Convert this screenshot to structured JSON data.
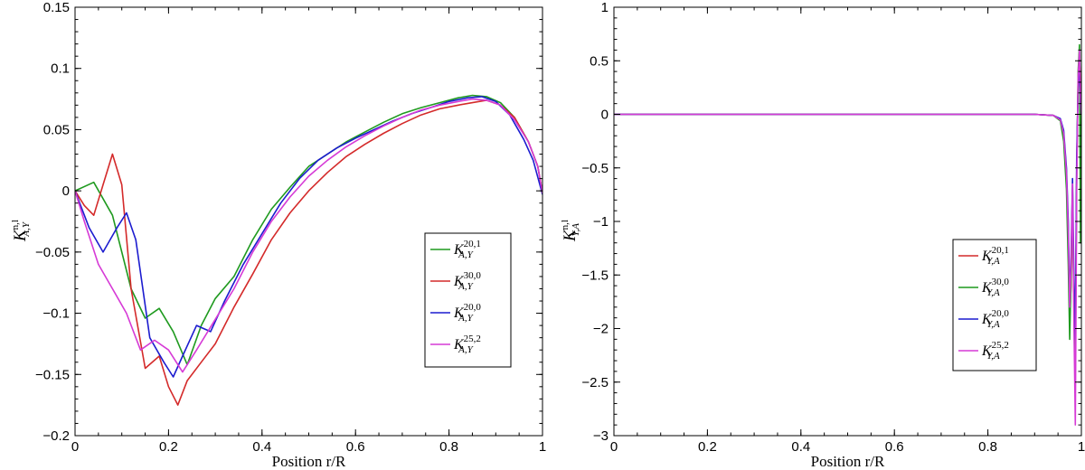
{
  "chart_data": [
    {
      "type": "line",
      "xlabel": "Position r/R",
      "ylabel": {
        "base": "K",
        "sup": "n,l",
        "sub": "A,Y"
      },
      "xlim": [
        0,
        1
      ],
      "ylim": [
        -0.2,
        0.15
      ],
      "xticks": [
        0,
        0.2,
        0.4,
        0.6,
        0.8,
        1
      ],
      "xtick_labels": [
        "0",
        "0.2",
        "0.4",
        "0.6",
        "0.8",
        "1"
      ],
      "yticks": [
        -0.2,
        -0.15,
        -0.1,
        -0.05,
        0,
        0.05,
        0.1,
        0.15
      ],
      "ytick_labels": [
        "−0.2",
        "−0.15",
        "−0.1",
        "−0.05",
        "0",
        "0.05",
        "0.1",
        "0.15"
      ],
      "grid": false,
      "legend_position": "center-right",
      "series": [
        {
          "name": "K_{A,Y}^{20,1}",
          "label": {
            "base": "K",
            "sup": "20,1",
            "sub": "A,Y"
          },
          "color": "#1f9a1f",
          "x": [
            0,
            0.04,
            0.08,
            0.12,
            0.15,
            0.18,
            0.21,
            0.24,
            0.27,
            0.3,
            0.34,
            0.38,
            0.42,
            0.46,
            0.5,
            0.54,
            0.58,
            0.62,
            0.66,
            0.7,
            0.74,
            0.78,
            0.82,
            0.85,
            0.88,
            0.91,
            0.94,
            0.97,
            0.99,
            1.0
          ],
          "y": [
            0,
            0.007,
            -0.02,
            -0.08,
            -0.104,
            -0.096,
            -0.115,
            -0.142,
            -0.11,
            -0.088,
            -0.07,
            -0.04,
            -0.015,
            0.003,
            0.02,
            0.03,
            0.04,
            0.048,
            0.056,
            0.063,
            0.068,
            0.072,
            0.076,
            0.078,
            0.077,
            0.072,
            0.06,
            0.04,
            0.02,
            -0.002
          ]
        },
        {
          "name": "K_{A,Y}^{30,0}",
          "label": {
            "base": "K",
            "sup": "30,0",
            "sub": "A,Y"
          },
          "color": "#d42a2a",
          "x": [
            0,
            0.02,
            0.04,
            0.06,
            0.08,
            0.1,
            0.12,
            0.15,
            0.18,
            0.2,
            0.22,
            0.24,
            0.27,
            0.3,
            0.34,
            0.38,
            0.42,
            0.46,
            0.5,
            0.54,
            0.58,
            0.62,
            0.66,
            0.7,
            0.74,
            0.78,
            0.82,
            0.85,
            0.88,
            0.91,
            0.94,
            0.97,
            0.99,
            1.0
          ],
          "y": [
            0,
            -0.012,
            -0.02,
            0.005,
            0.03,
            0.005,
            -0.08,
            -0.145,
            -0.135,
            -0.16,
            -0.175,
            -0.155,
            -0.14,
            -0.125,
            -0.095,
            -0.068,
            -0.04,
            -0.018,
            0.0,
            0.015,
            0.028,
            0.038,
            0.047,
            0.055,
            0.062,
            0.067,
            0.07,
            0.072,
            0.074,
            0.07,
            0.06,
            0.04,
            0.02,
            -0.002
          ]
        },
        {
          "name": "K_{A,Y}^{20,0}",
          "label": {
            "base": "K",
            "sup": "20,0",
            "sub": "A,Y"
          },
          "color": "#1c1ccf",
          "x": [
            0,
            0.03,
            0.06,
            0.09,
            0.11,
            0.13,
            0.16,
            0.19,
            0.21,
            0.23,
            0.26,
            0.29,
            0.32,
            0.36,
            0.4,
            0.44,
            0.48,
            0.52,
            0.56,
            0.6,
            0.64,
            0.68,
            0.72,
            0.76,
            0.8,
            0.84,
            0.87,
            0.9,
            0.93,
            0.96,
            0.98,
            1.0
          ],
          "y": [
            0,
            -0.03,
            -0.05,
            -0.03,
            -0.018,
            -0.04,
            -0.12,
            -0.14,
            -0.152,
            -0.135,
            -0.11,
            -0.115,
            -0.09,
            -0.06,
            -0.035,
            -0.01,
            0.01,
            0.025,
            0.035,
            0.043,
            0.05,
            0.057,
            0.063,
            0.068,
            0.073,
            0.076,
            0.077,
            0.073,
            0.062,
            0.042,
            0.025,
            -0.003
          ]
        },
        {
          "name": "K_{A,Y}^{25,2}",
          "label": {
            "base": "K",
            "sup": "25,2",
            "sub": "A,Y"
          },
          "color": "#d63ad6",
          "x": [
            0,
            0.02,
            0.05,
            0.08,
            0.11,
            0.14,
            0.17,
            0.2,
            0.23,
            0.26,
            0.3,
            0.34,
            0.38,
            0.42,
            0.46,
            0.5,
            0.54,
            0.58,
            0.62,
            0.66,
            0.7,
            0.74,
            0.78,
            0.82,
            0.85,
            0.88,
            0.91,
            0.94,
            0.97,
            0.99,
            1.0
          ],
          "y": [
            0,
            -0.025,
            -0.06,
            -0.08,
            -0.1,
            -0.13,
            -0.122,
            -0.13,
            -0.148,
            -0.13,
            -0.105,
            -0.08,
            -0.05,
            -0.025,
            -0.005,
            0.012,
            0.025,
            0.036,
            0.045,
            0.053,
            0.06,
            0.066,
            0.07,
            0.073,
            0.075,
            0.074,
            0.07,
            0.058,
            0.04,
            0.02,
            -0.002
          ]
        }
      ]
    },
    {
      "type": "line",
      "xlabel": "Position r/R",
      "ylabel": {
        "base": "K",
        "sup": "n,l",
        "sub": "Y,A"
      },
      "xlim": [
        0,
        1
      ],
      "ylim": [
        -3,
        1
      ],
      "xticks": [
        0,
        0.2,
        0.4,
        0.6,
        0.8,
        1
      ],
      "xtick_labels": [
        "0",
        "0.2",
        "0.4",
        "0.6",
        "0.8",
        "1"
      ],
      "yticks": [
        -3,
        -2.5,
        -2,
        -1.5,
        -1,
        -0.5,
        0,
        0.5,
        1
      ],
      "ytick_labels": [
        "−3",
        "−2.5",
        "−2",
        "−1.5",
        "−1",
        "−0.5",
        "0",
        "0.5",
        "1"
      ],
      "grid": false,
      "legend_position": "center-right",
      "series": [
        {
          "name": "K_{Y,A}^{20,1}",
          "label": {
            "base": "K",
            "sup": "20,1",
            "sub": "Y,A"
          },
          "color": "#d42a2a",
          "x": [
            0,
            0.5,
            0.9,
            0.94,
            0.955,
            0.962,
            0.968,
            0.972,
            0.975,
            0.978,
            0.981,
            0.984,
            0.987,
            0.99,
            0.993,
            0.996,
            0.998,
            1.0
          ],
          "y": [
            0,
            0,
            0,
            -0.01,
            -0.05,
            -0.2,
            -0.6,
            -1.2,
            -1.9,
            -1.6,
            -0.8,
            -1.7,
            -2.3,
            -0.5,
            0.3,
            0.55,
            0.2,
            0
          ]
        },
        {
          "name": "K_{Y,A}^{30,0}",
          "label": {
            "base": "K",
            "sup": "30,0",
            "sub": "Y,A"
          },
          "color": "#1f9a1f",
          "x": [
            0,
            0.5,
            0.9,
            0.94,
            0.955,
            0.962,
            0.968,
            0.972,
            0.975,
            0.978,
            0.981,
            0.984,
            0.987,
            0.99,
            0.993,
            0.996,
            0.998,
            1.0
          ],
          "y": [
            0,
            0,
            0,
            -0.01,
            -0.06,
            -0.25,
            -0.7,
            -1.4,
            -2.1,
            -1.5,
            -0.7,
            -1.8,
            -2.4,
            -0.6,
            0.4,
            0.65,
            -1.2,
            0
          ]
        },
        {
          "name": "K_{Y,A}^{20,0}",
          "label": {
            "base": "K",
            "sup": "20,0",
            "sub": "Y,A"
          },
          "color": "#1c1ccf",
          "x": [
            0,
            0.5,
            0.9,
            0.94,
            0.955,
            0.962,
            0.968,
            0.972,
            0.975,
            0.978,
            0.981,
            0.984,
            0.987,
            0.99,
            0.993,
            0.996,
            0.998,
            1.0
          ],
          "y": [
            0,
            0,
            0,
            -0.01,
            -0.04,
            -0.15,
            -0.5,
            -1.0,
            -1.75,
            -1.3,
            -0.6,
            -1.5,
            -2.1,
            -0.4,
            0.25,
            0.45,
            0.1,
            0
          ]
        },
        {
          "name": "K_{Y,A}^{25,2}",
          "label": {
            "base": "K",
            "sup": "25,2",
            "sub": "Y,A"
          },
          "color": "#d63ad6",
          "x": [
            0,
            0.5,
            0.9,
            0.94,
            0.955,
            0.962,
            0.968,
            0.972,
            0.975,
            0.978,
            0.981,
            0.984,
            0.987,
            0.99,
            0.993,
            0.996,
            0.998,
            1.0
          ],
          "y": [
            0,
            0,
            0,
            -0.01,
            -0.05,
            -0.18,
            -0.55,
            -1.1,
            -1.8,
            -1.4,
            -0.65,
            -1.9,
            -2.9,
            -0.7,
            0.35,
            0.6,
            0.15,
            0
          ]
        }
      ]
    }
  ]
}
